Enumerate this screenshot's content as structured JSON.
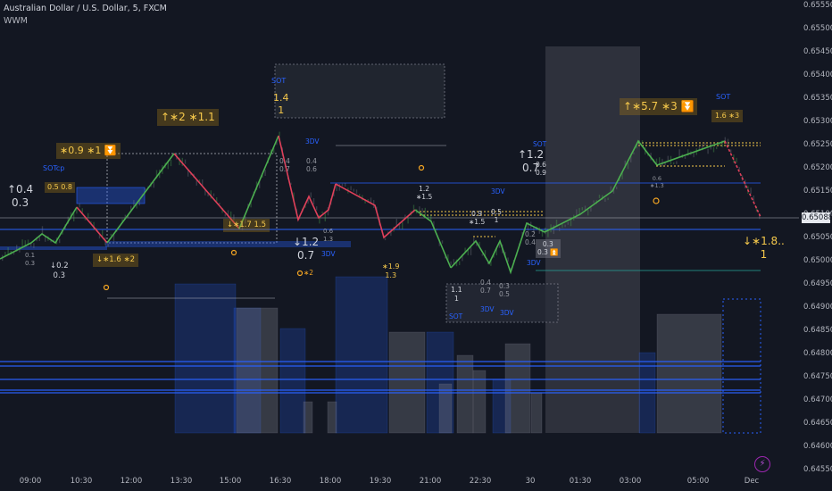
{
  "header": {
    "symbol_title": "Australian Dollar / U.S. Dollar, 5, FXCM",
    "indicator_name": "WWM"
  },
  "price_axis": {
    "labels": [
      "0.65550",
      "0.65500",
      "0.65450",
      "0.65400",
      "0.65350",
      "0.65300",
      "0.65250",
      "0.65200",
      "0.65150",
      "0.65100",
      "0.65050",
      "0.65000",
      "0.64950",
      "0.64900",
      "0.64850",
      "0.64800",
      "0.64750",
      "0.64700",
      "0.64650",
      "0.64600",
      "0.64550"
    ],
    "current_price": "0.65088"
  },
  "time_axis": {
    "labels": [
      "09:00",
      "10:30",
      "12:00",
      "13:30",
      "15:00",
      "16:30",
      "18:00",
      "19:30",
      "21:00",
      "22:30",
      "30",
      "01:30",
      "03:00",
      "05:00",
      "Dec"
    ]
  },
  "annotations": {
    "a1": "↑0.4\n0.3",
    "a2": "0.5\n0.8",
    "a3_badge": "∗0.9\n∗1 ⏬",
    "a3_label": "SOTcp",
    "a4": "0.1\n0.3",
    "a5": "↓0.2\n0.3",
    "a6_badge": "↓∗1.6\n∗2",
    "a7_badge": "↑∗2\n∗1.1",
    "a8_badge": "↓∗1.7\n1.5",
    "a9_sot": "SOT",
    "a9_vals": "1.4\n1",
    "a10_3dv": "3DV",
    "a10_vals": "0.4\n0.7",
    "a10_vals2": "0.4\n0.6",
    "a11": "↓1.2\n0.7",
    "a11_3dv": "3DV",
    "a11_small": "0.6\n1.3",
    "a11_star": "∗2",
    "a12": "∗1.9\n1.3",
    "a13": "1.2\n∗1.5",
    "a14": "0.9\n∗1.5",
    "a15": "0.5\n1",
    "a16_3dv": "3DV",
    "a17": "1.1\n1",
    "a18": "0.4\n0.7",
    "a19": "0.3\n0.5",
    "a20_sot": "SOT",
    "a20_3dv": "3DV",
    "a20_3dv2": "3DV",
    "a21": "↑1.2\n0.7",
    "a21_sot": "SOT",
    "a21_small": "0.6\n0.9",
    "a22": "0.2\n0.4",
    "a22_b": "0.3\n0.3 ⏫",
    "a22_3dv": "3DV",
    "a23_badge": "↑∗5.7\n∗3 ⏬",
    "a24": "0.6\n∗1.3",
    "a25_sot": "SOT",
    "a25_badge": "1.6\n∗3",
    "a26": "↓∗1.8..\n1"
  },
  "colors": {
    "background": "#131722",
    "up_leg": "#4caf50",
    "down_leg": "#e0405a",
    "accent_blue": "#2962ff",
    "badge_text": "#f5c84b"
  }
}
